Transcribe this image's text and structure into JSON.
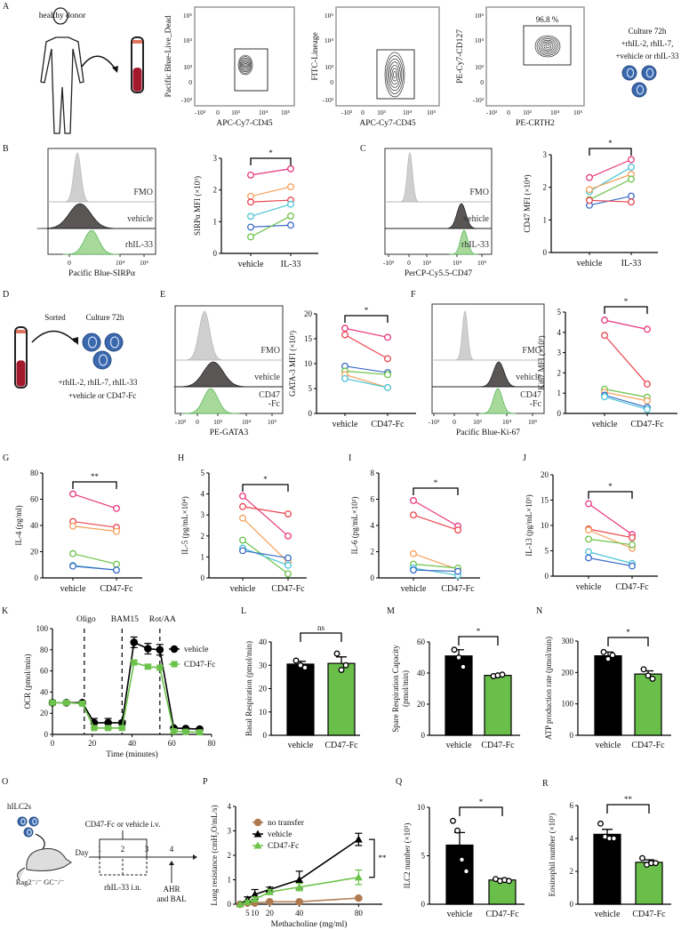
{
  "panel_labels": [
    "A",
    "B",
    "C",
    "D",
    "E",
    "F",
    "G",
    "H",
    "I",
    "J",
    "K",
    "L",
    "M",
    "N",
    "O",
    "P",
    "Q",
    "R"
  ],
  "schematic": {
    "A": {
      "donor": "healthy donor",
      "culture": [
        "Culture 72h",
        "+rhIL-2, rhIL-7,",
        "+vehicle or  rhIL-33"
      ]
    },
    "D": {
      "sorted": "Sorted",
      "culture": "Culture 72h",
      "lines": [
        "+rhIL-2, rhIL-7, rhIL-33",
        "+vehicle or CD47-Fc"
      ]
    },
    "O": {
      "cells": "hILC2s",
      "mouse": "Rag2⁻/⁻ GC⁻/⁻",
      "treatment": "CD47-Fc or vehicle  i.v.",
      "day": "Day",
      "days": [
        "1",
        "2",
        "3",
        "4"
      ],
      "challenge": "rhIL-33 i.n.",
      "readout": [
        "AHR",
        "and BAL"
      ]
    }
  },
  "colors": {
    "pink": "#e8377e",
    "red": "#e8464f",
    "orange": "#f5a05a",
    "cyan": "#4cc6d6",
    "blue": "#3a6cc6",
    "green": "#6cc24a",
    "bar_green": "#6abf4b",
    "brown": "#b07a50"
  },
  "chart_data": [
    {
      "id": "A1",
      "type": "scatter",
      "kind": "flow",
      "xlabel": "APC-Cy7-CD45",
      "ylabel": "Pacific Blue-Live_Dead",
      "xticks": [
        "-10³",
        "0",
        "10³",
        "10⁴",
        "10⁵"
      ],
      "yticks": [
        "10⁵",
        "10⁴",
        "10³",
        "0",
        "-10³"
      ]
    },
    {
      "id": "A2",
      "type": "scatter",
      "kind": "flow",
      "xlabel": "APC-Cy7-CD45",
      "ylabel": "FITC-Lineage",
      "xticks": [
        "-10³",
        "0",
        "10³",
        "10⁴",
        "10⁵"
      ],
      "yticks": [
        "10⁵",
        "10⁴",
        "10³",
        "0",
        "-10³"
      ]
    },
    {
      "id": "A3",
      "type": "scatter",
      "kind": "flow",
      "xlabel": "PE-CRTH2",
      "ylabel": "PE-Cy7-CD127",
      "xticks": [
        "-10³",
        "0",
        "10³",
        "10⁴",
        "10⁵"
      ],
      "yticks": [
        "10⁵",
        "10⁴",
        "10³",
        "0",
        "-10³"
      ],
      "gate_label": "96.8 %"
    },
    {
      "id": "B-hist",
      "type": "area",
      "kind": "histogram",
      "xlabel": "Pacific Blue-SIRPα",
      "xticks": [
        "0",
        "10⁴",
        "10⁵"
      ],
      "tracks": [
        [
          "FMO"
        ],
        [
          "vehicle"
        ],
        [
          "rhIL-33"
        ]
      ]
    },
    {
      "id": "B",
      "type": "line",
      "kind": "paired",
      "ylabel": "SIRPα MFI (×10³)",
      "xticks": [
        "vehicle",
        "IL-33"
      ],
      "yticks": [
        0,
        1,
        2,
        3
      ],
      "ylim": [
        0,
        3
      ],
      "significance": "*",
      "pairs": [
        {
          "color": "#e8377e",
          "vehicle": 2.47,
          "treated": 2.67
        },
        {
          "color": "#f5a05a",
          "vehicle": 1.8,
          "treated": 2.1
        },
        {
          "color": "#e8464f",
          "vehicle": 1.62,
          "treated": 1.68
        },
        {
          "color": "#4cc6d6",
          "vehicle": 1.17,
          "treated": 1.55
        },
        {
          "color": "#3a6cc6",
          "vehicle": 0.83,
          "treated": 0.89
        },
        {
          "color": "#6cc24a",
          "vehicle": 0.52,
          "treated": 1.18
        }
      ]
    },
    {
      "id": "C-hist",
      "type": "area",
      "kind": "histogram",
      "xlabel": "PerCP-Cy5.5-CD47",
      "xticks": [
        "-10³",
        "0",
        "10³",
        "10⁴",
        "10⁵"
      ],
      "tracks": [
        [
          "FMO"
        ],
        [
          "vehicle"
        ],
        [
          "rhIL-33"
        ]
      ]
    },
    {
      "id": "C",
      "type": "line",
      "kind": "paired",
      "ylabel": "CD47 MFI (×10⁴)",
      "xticks": [
        "vehicle",
        "IL-33"
      ],
      "yticks": [
        0,
        1,
        2,
        3
      ],
      "ylim": [
        0,
        3
      ],
      "significance": "*",
      "pairs": [
        {
          "color": "#e8377e",
          "vehicle": 2.3,
          "treated": 2.85
        },
        {
          "color": "#4cc6d6",
          "vehicle": 1.87,
          "treated": 2.62
        },
        {
          "color": "#f5a05a",
          "vehicle": 1.93,
          "treated": 2.4
        },
        {
          "color": "#6cc24a",
          "vehicle": 1.62,
          "treated": 2.25
        },
        {
          "color": "#3a6cc6",
          "vehicle": 1.45,
          "treated": 1.73
        },
        {
          "color": "#e8464f",
          "vehicle": 1.6,
          "treated": 1.55
        }
      ]
    },
    {
      "id": "E-hist",
      "type": "area",
      "kind": "histogram",
      "xlabel": "PE-GATA3",
      "xticks": [
        "-10³",
        "0",
        "10³",
        "10⁴",
        "10⁵"
      ],
      "tracks": [
        [
          "FMO"
        ],
        [
          "vehicle"
        ],
        [
          "CD47",
          "-Fc"
        ]
      ]
    },
    {
      "id": "E",
      "type": "line",
      "kind": "paired",
      "ylabel": "GATA-3 MFI (×10²)",
      "xticks": [
        "vehicle",
        "CD47-Fc"
      ],
      "yticks": [
        0,
        5,
        10,
        15,
        20
      ],
      "ylim": [
        0,
        20
      ],
      "significance": "*",
      "pairs": [
        {
          "color": "#e8377e",
          "vehicle": 17.1,
          "treated": 15.3
        },
        {
          "color": "#e8464f",
          "vehicle": 15.8,
          "treated": 11.0
        },
        {
          "color": "#3a6cc6",
          "vehicle": 9.5,
          "treated": 8.2
        },
        {
          "color": "#6cc24a",
          "vehicle": 8.5,
          "treated": 7.8
        },
        {
          "color": "#f5a05a",
          "vehicle": 7.8,
          "treated": 5.2
        },
        {
          "color": "#4cc6d6",
          "vehicle": 7.0,
          "treated": 5.2
        }
      ]
    },
    {
      "id": "F-hist",
      "type": "area",
      "kind": "histogram",
      "xlabel": "Pacific Blue-Ki-67",
      "xticks": [
        "-10³",
        "0",
        "10³",
        "10⁴",
        "10⁵"
      ],
      "tracks": [
        [
          "FMO"
        ],
        [
          "vehicle"
        ],
        [
          "CD47",
          "-Fc"
        ]
      ]
    },
    {
      "id": "F",
      "type": "line",
      "kind": "paired",
      "ylabel": "Ki67 MFI (×10³)",
      "xticks": [
        "vehicle",
        "CD47-Fc"
      ],
      "yticks": [
        0,
        1,
        2,
        3,
        4,
        5
      ],
      "ylim": [
        0,
        5
      ],
      "significance": "*",
      "pairs": [
        {
          "color": "#e8377e",
          "vehicle": 4.6,
          "treated": 4.15
        },
        {
          "color": "#e8464f",
          "vehicle": 3.85,
          "treated": 1.45
        },
        {
          "color": "#6cc24a",
          "vehicle": 1.2,
          "treated": 0.8
        },
        {
          "color": "#f5a05a",
          "vehicle": 1.05,
          "treated": 0.62
        },
        {
          "color": "#3a6cc6",
          "vehicle": 0.9,
          "treated": 0.3
        },
        {
          "color": "#4cc6d6",
          "vehicle": 0.82,
          "treated": 0.2
        }
      ]
    },
    {
      "id": "G",
      "type": "line",
      "kind": "paired",
      "ylabel": "IL-4 (pg/ml)",
      "xticks": [
        "vehicle",
        "CD47-Fc"
      ],
      "yticks": [
        0,
        20,
        40,
        60,
        80
      ],
      "ylim": [
        0,
        80
      ],
      "significance": "**",
      "pairs": [
        {
          "color": "#e8377e",
          "vehicle": 64,
          "treated": 53
        },
        {
          "color": "#e8464f",
          "vehicle": 43,
          "treated": 38.5
        },
        {
          "color": "#f5a05a",
          "vehicle": 39.5,
          "treated": 35.5
        },
        {
          "color": "#6cc24a",
          "vehicle": 18.5,
          "treated": 10.5
        },
        {
          "color": "#4cc6d6",
          "vehicle": 9.5,
          "treated": 6
        },
        {
          "color": "#3a6cc6",
          "vehicle": 9,
          "treated": 6
        }
      ]
    },
    {
      "id": "H",
      "type": "line",
      "kind": "paired",
      "ylabel": "IL-5 (pg/mL×10⁴)",
      "xticks": [
        "vehicle",
        "CD47-Fc"
      ],
      "yticks": [
        0,
        1,
        2,
        3,
        4,
        5
      ],
      "ylim": [
        0,
        5
      ],
      "significance": "*",
      "pairs": [
        {
          "color": "#e8377e",
          "vehicle": 3.9,
          "treated": 2.0
        },
        {
          "color": "#e8464f",
          "vehicle": 3.4,
          "treated": 3.05
        },
        {
          "color": "#f5a05a",
          "vehicle": 2.85,
          "treated": 0.75
        },
        {
          "color": "#6cc24a",
          "vehicle": 1.8,
          "treated": 0.2
        },
        {
          "color": "#4cc6d6",
          "vehicle": 1.42,
          "treated": 0.6
        },
        {
          "color": "#3a6cc6",
          "vehicle": 1.3,
          "treated": 0.95
        }
      ]
    },
    {
      "id": "I",
      "type": "line",
      "kind": "paired",
      "ylabel": "IL-6 (pg/mL×10²)",
      "xticks": [
        "vehicle",
        "CD47-Fc"
      ],
      "yticks": [
        0,
        2,
        4,
        6,
        8
      ],
      "ylim": [
        0,
        8
      ],
      "significance": "*",
      "pairs": [
        {
          "color": "#e8377e",
          "vehicle": 5.9,
          "treated": 3.95
        },
        {
          "color": "#e8464f",
          "vehicle": 4.8,
          "treated": 3.65
        },
        {
          "color": "#f5a05a",
          "vehicle": 1.85,
          "treated": 0.65
        },
        {
          "color": "#6cc24a",
          "vehicle": 1.05,
          "treated": 0.75
        },
        {
          "color": "#4cc6d6",
          "vehicle": 0.75,
          "treated": 0.2
        },
        {
          "color": "#3a6cc6",
          "vehicle": 0.6,
          "treated": 0.5
        }
      ]
    },
    {
      "id": "J",
      "type": "line",
      "kind": "paired",
      "ylabel": "IL-13 (pg/mL×10³)",
      "xticks": [
        "vehicle",
        "CD47-Fc"
      ],
      "yticks": [
        0,
        5,
        10,
        15,
        20
      ],
      "ylim": [
        0,
        20
      ],
      "significance": "*",
      "pairs": [
        {
          "color": "#e8377e",
          "vehicle": 14.3,
          "treated": 8.2
        },
        {
          "color": "#e8464f",
          "vehicle": 9.3,
          "treated": 7.6
        },
        {
          "color": "#f5a05a",
          "vehicle": 9.1,
          "treated": 5.5
        },
        {
          "color": "#6cc24a",
          "vehicle": 7.3,
          "treated": 6.2
        },
        {
          "color": "#4cc6d6",
          "vehicle": 4.8,
          "treated": 2.5
        },
        {
          "color": "#3a6cc6",
          "vehicle": 3.6,
          "treated": 2.0
        }
      ]
    },
    {
      "id": "K",
      "type": "line",
      "kind": "timecourse",
      "xlabel": "Time (minutes)",
      "ylabel": "OCR (pmol/min)",
      "xticks": [
        0,
        20,
        40,
        60,
        80
      ],
      "yticks": [
        0,
        20,
        40,
        60,
        80,
        100
      ],
      "xlim": [
        0,
        80
      ],
      "ylim": [
        0,
        100
      ],
      "injections": [
        {
          "label": "Oligo",
          "x": 16
        },
        {
          "label": "BAM15",
          "x": 35
        },
        {
          "label": "Rot/AA",
          "x": 54
        }
      ],
      "x": [
        0,
        7,
        15,
        21,
        28,
        35,
        41,
        48,
        54,
        61,
        67,
        74
      ],
      "series": [
        {
          "name": "vehicle",
          "color": "#000000",
          "marker": "circle",
          "values": [
            30,
            30,
            30,
            11,
            11,
            11,
            87,
            81,
            80,
            6,
            5.5,
            5
          ],
          "err": [
            2,
            1,
            1,
            4,
            4,
            2,
            5,
            5,
            5,
            1,
            1,
            1
          ]
        },
        {
          "name": "CD47-Fc",
          "color": "#6cc24a",
          "marker": "square",
          "values": [
            30,
            30,
            29,
            6,
            6,
            6,
            68,
            64,
            63,
            3,
            2.5,
            2
          ],
          "err": [
            1,
            1,
            1,
            1,
            1,
            1,
            2,
            2,
            2,
            1,
            1,
            1
          ]
        }
      ],
      "legend": "right"
    },
    {
      "id": "L",
      "type": "bar",
      "ylabel": [
        "Basal Respiration (pmol/min)"
      ],
      "categories": [
        "vehicle",
        "CD47-Fc"
      ],
      "yticks": [
        0,
        10,
        20,
        30,
        40
      ],
      "ylim": [
        0,
        40
      ],
      "means": [
        30.5,
        30.8
      ],
      "sem": [
        1.2,
        2.8
      ],
      "points": [
        [
          32,
          30,
          29
        ],
        [
          35,
          28,
          30
        ]
      ],
      "colors": [
        "#000000",
        "#6abf4b"
      ],
      "significance": "ns"
    },
    {
      "id": "M",
      "type": "bar",
      "ylabel": [
        "Spare Respiration Capacity",
        "(pmol/min)"
      ],
      "categories": [
        "vehicle",
        "CD47-Fc"
      ],
      "yticks": [
        0,
        20,
        40,
        60
      ],
      "ylim": [
        0,
        60
      ],
      "means": [
        51,
        38.5
      ],
      "sem": [
        4,
        0.8
      ],
      "points": [
        [
          55,
          50,
          44
        ],
        [
          38,
          38.5,
          39
        ]
      ],
      "colors": [
        "#000000",
        "#6abf4b"
      ],
      "significance": "*"
    },
    {
      "id": "N",
      "type": "bar",
      "ylabel": [
        "ATP production rate (pmol/min)"
      ],
      "categories": [
        "vehicle",
        "CD47-Fc"
      ],
      "yticks": [
        0,
        100,
        200,
        300
      ],
      "ylim": [
        0,
        300
      ],
      "means": [
        253,
        195
      ],
      "sem": [
        12,
        10
      ],
      "points": [
        [
          265,
          243,
          255
        ],
        [
          210,
          190,
          180
        ]
      ],
      "colors": [
        "#000000",
        "#6abf4b"
      ],
      "significance": "*"
    },
    {
      "id": "P",
      "type": "line",
      "kind": "dose",
      "xlabel": "Methacholine (mg/ml)",
      "ylabel": "Lung resistance (cmH₂O/mL/s)",
      "xticks": [
        5,
        10,
        20,
        40,
        80
      ],
      "yticks": [
        0,
        1,
        2,
        3,
        4
      ],
      "xlim": [
        -3,
        96
      ],
      "ylim": [
        0,
        4
      ],
      "x": [
        0,
        5,
        10,
        20,
        40,
        80
      ],
      "series": [
        {
          "name": "no transfer",
          "color": "#b07a50",
          "marker": "circle",
          "values": [
            0,
            0.05,
            0.05,
            0.1,
            0.1,
            0.25
          ],
          "err": [
            0,
            0.03,
            0.03,
            0.03,
            0.03,
            0.05
          ]
        },
        {
          "name": "vehicle",
          "color": "#000000",
          "marker": "triangle",
          "values": [
            0,
            0.2,
            0.4,
            0.6,
            1.0,
            2.65
          ],
          "err": [
            0,
            0.1,
            0.2,
            0.1,
            0.35,
            0.25
          ]
        },
        {
          "name": "CD47-Fc",
          "color": "#6cc24a",
          "marker": "triangle",
          "values": [
            0,
            0.1,
            0.2,
            0.5,
            0.7,
            1.1
          ],
          "err": [
            0,
            0.05,
            0.1,
            0.1,
            0.15,
            0.3
          ]
        }
      ],
      "significance": "**",
      "legend": "top-left"
    },
    {
      "id": "Q",
      "type": "bar",
      "ylabel": [
        "ILC2 number (×10³)"
      ],
      "categories": [
        "vehicle",
        "CD47-Fc"
      ],
      "yticks": [
        0,
        5,
        10
      ],
      "ylim": [
        0,
        10
      ],
      "means": [
        6.1,
        2.5
      ],
      "sem": [
        1.3,
        0.15
      ],
      "points": [
        [
          8.6,
          7.6,
          4.6,
          3.4
        ],
        [
          2.6,
          2.4,
          2.5,
          2.4
        ]
      ],
      "colors": [
        "#000000",
        "#6abf4b"
      ],
      "significance": "*"
    },
    {
      "id": "R",
      "type": "bar",
      "ylabel": [
        "Eosinophil number (×10³)"
      ],
      "categories": [
        "vehicle",
        "CD47-Fc"
      ],
      "yticks": [
        0,
        2,
        4,
        6
      ],
      "ylim": [
        0,
        6
      ],
      "means": [
        4.25,
        2.55
      ],
      "sem": [
        0.3,
        0.15
      ],
      "points": [
        [
          4.9,
          4.1,
          4.0,
          4.0
        ],
        [
          2.8,
          2.4,
          2.5,
          2.5
        ]
      ],
      "colors": [
        "#000000",
        "#6abf4b"
      ],
      "significance": "**"
    }
  ]
}
